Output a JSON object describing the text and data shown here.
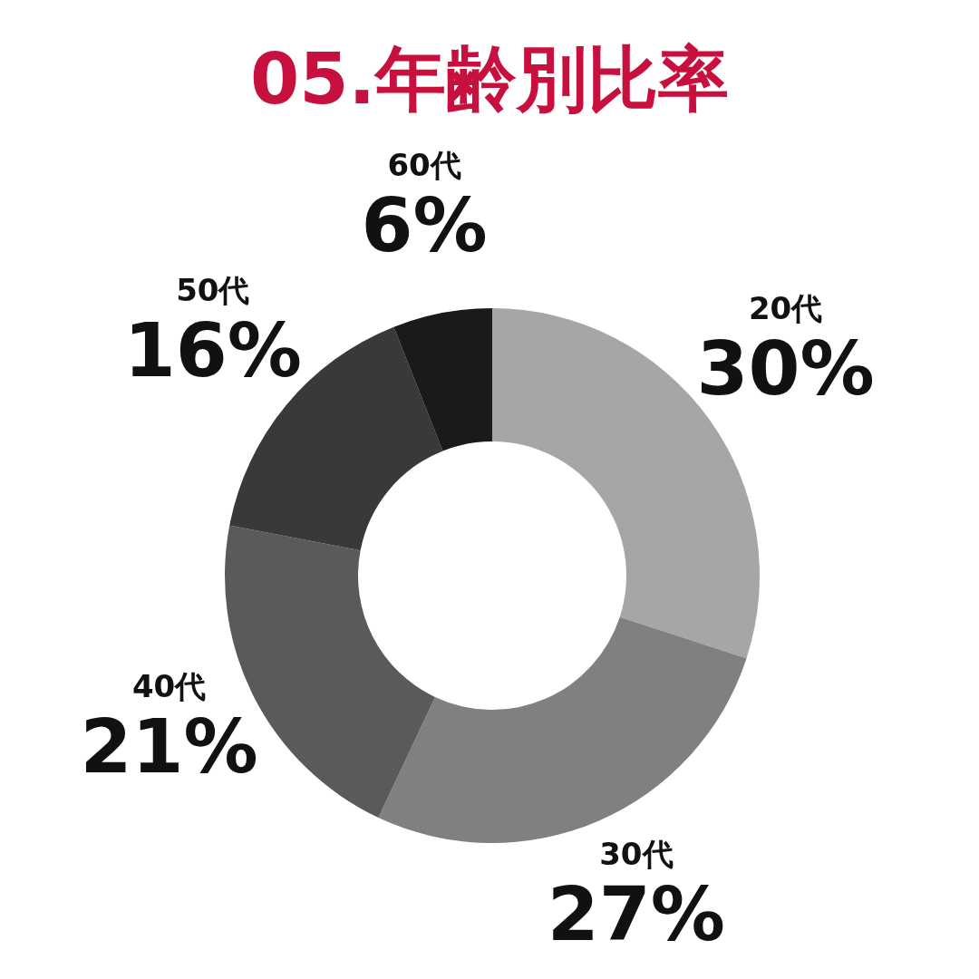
{
  "chart_data": {
    "type": "donut",
    "title": "05.年齢別比率",
    "categories": [
      "20代",
      "30代",
      "40代",
      "50代",
      "60代"
    ],
    "values": [
      30,
      27,
      21,
      16,
      6
    ],
    "value_labels": [
      "30%",
      "27%",
      "21%",
      "16%",
      "6%"
    ],
    "colors": [
      "#a6a6a6",
      "#808080",
      "#5a5a5a",
      "#393939",
      "#1a1a1a"
    ],
    "legend": false
  }
}
